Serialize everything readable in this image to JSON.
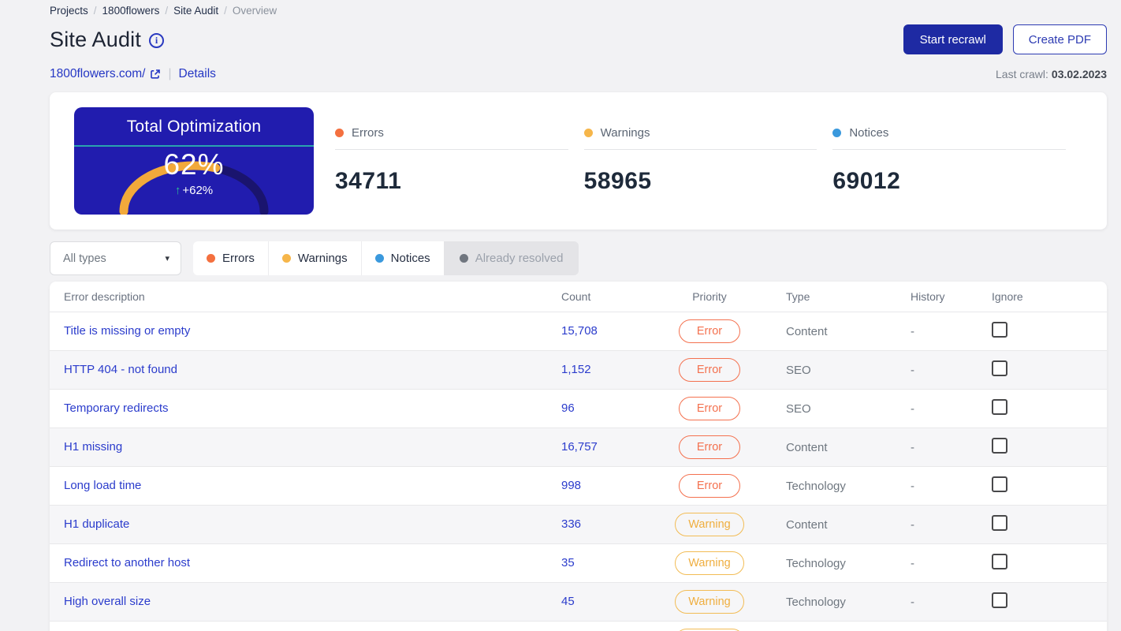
{
  "breadcrumb": {
    "separator": "/",
    "items": [
      {
        "label": "Projects"
      },
      {
        "label": "1800flowers"
      },
      {
        "label": "Site Audit"
      },
      {
        "label": "Overview"
      }
    ]
  },
  "header": {
    "title": "Site Audit",
    "start_recrawl": "Start recrawl",
    "create_pdf": "Create PDF",
    "domain": "1800flowers.com/",
    "details": "Details",
    "last_crawl_label": "Last crawl:",
    "last_crawl_value": "03.02.2023"
  },
  "gauge": {
    "title": "Total Optimization",
    "percent": 62,
    "percent_label": "62%",
    "delta": "+62%",
    "background_color": "#211cae",
    "arc_color": "#f2a93b",
    "arc_track_color": "#1a146e",
    "divider_color": "#2aa3ae",
    "delta_arrow_color": "#2fbf96"
  },
  "stats": {
    "items": [
      {
        "label": "Errors",
        "value": "34711",
        "color": "#f4703f"
      },
      {
        "label": "Warnings",
        "value": "58965",
        "color": "#f6b64a"
      },
      {
        "label": "Notices",
        "value": "69012",
        "color": "#3a99dd"
      }
    ]
  },
  "filters": {
    "type_select_value": "All types",
    "segments": [
      {
        "label": "Errors",
        "color": "#f4703f",
        "active": true
      },
      {
        "label": "Warnings",
        "color": "#f6b64a",
        "active": true
      },
      {
        "label": "Notices",
        "color": "#3a99dd",
        "active": true
      },
      {
        "label": "Already resolved",
        "color": "#70767f",
        "active": false
      }
    ]
  },
  "table": {
    "columns": [
      "Error description",
      "Count",
      "Priority",
      "Type",
      "History",
      "Ignore"
    ],
    "rows": [
      {
        "description": "Title is missing or empty",
        "count": "15,708",
        "priority": "Error",
        "type": "Content",
        "history": "-",
        "ignored": false
      },
      {
        "description": "HTTP 404 - not found",
        "count": "1,152",
        "priority": "Error",
        "type": "SEO",
        "history": "-",
        "ignored": false
      },
      {
        "description": "Temporary redirects",
        "count": "96",
        "priority": "Error",
        "type": "SEO",
        "history": "-",
        "ignored": false
      },
      {
        "description": "H1 missing",
        "count": "16,757",
        "priority": "Error",
        "type": "Content",
        "history": "-",
        "ignored": false
      },
      {
        "description": "Long load time",
        "count": "998",
        "priority": "Error",
        "type": "Technology",
        "history": "-",
        "ignored": false
      },
      {
        "description": "H1 duplicate",
        "count": "336",
        "priority": "Warning",
        "type": "Content",
        "history": "-",
        "ignored": false
      },
      {
        "description": "Redirect to another host",
        "count": "35",
        "priority": "Warning",
        "type": "Technology",
        "history": "-",
        "ignored": false
      },
      {
        "description": "High overall size",
        "count": "45",
        "priority": "Warning",
        "type": "Technology",
        "history": "-",
        "ignored": false
      },
      {
        "description": "",
        "count": "",
        "priority": "Warning",
        "type": "",
        "history": "",
        "ignored": false,
        "partial": true
      }
    ]
  },
  "icons": {
    "dropdown_caret": "▾",
    "delta_up_arrow": "↑",
    "info": "i"
  },
  "colors": {
    "page_background": "#f2f2f4",
    "primary_button": "#1e2aa3",
    "link": "#2b3ccc",
    "error_badge": "#f4714f",
    "warning_badge": "#efae3f"
  }
}
